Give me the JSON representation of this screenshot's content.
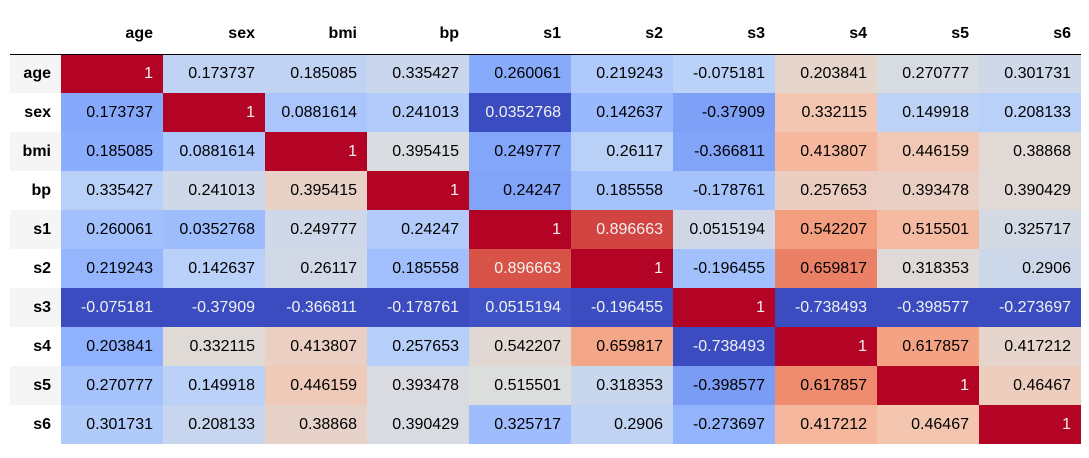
{
  "chart_data": {
    "type": "heatmap",
    "colormap": "coolwarm",
    "columns": [
      "age",
      "sex",
      "bmi",
      "bp",
      "s1",
      "s2",
      "s3",
      "s4",
      "s5",
      "s6"
    ],
    "rows": [
      "age",
      "sex",
      "bmi",
      "bp",
      "s1",
      "s2",
      "s3",
      "s4",
      "s5",
      "s6"
    ],
    "values": [
      [
        "1",
        "0.173737",
        "0.185085",
        "0.335427",
        "0.260061",
        "0.219243",
        "-0.075181",
        "0.203841",
        "0.270777",
        "0.301731"
      ],
      [
        "0.173737",
        "1",
        "0.0881614",
        "0.241013",
        "0.0352768",
        "0.142637",
        "-0.37909",
        "0.332115",
        "0.149918",
        "0.208133"
      ],
      [
        "0.185085",
        "0.0881614",
        "1",
        "0.395415",
        "0.249777",
        "0.26117",
        "-0.366811",
        "0.413807",
        "0.446159",
        "0.38868"
      ],
      [
        "0.335427",
        "0.241013",
        "0.395415",
        "1",
        "0.24247",
        "0.185558",
        "-0.178761",
        "0.257653",
        "0.393478",
        "0.390429"
      ],
      [
        "0.260061",
        "0.0352768",
        "0.249777",
        "0.24247",
        "1",
        "0.896663",
        "0.0515194",
        "0.542207",
        "0.515501",
        "0.325717"
      ],
      [
        "0.219243",
        "0.142637",
        "0.26117",
        "0.185558",
        "0.896663",
        "1",
        "-0.196455",
        "0.659817",
        "0.318353",
        "0.2906"
      ],
      [
        "-0.075181",
        "-0.37909",
        "-0.366811",
        "-0.178761",
        "0.0515194",
        "-0.196455",
        "1",
        "-0.738493",
        "-0.398577",
        "-0.273697"
      ],
      [
        "0.203841",
        "0.332115",
        "0.413807",
        "0.257653",
        "0.542207",
        "0.659817",
        "-0.738493",
        "1",
        "0.617857",
        "0.417212"
      ],
      [
        "0.270777",
        "0.149918",
        "0.446159",
        "0.393478",
        "0.515501",
        "0.318353",
        "-0.398577",
        "0.617857",
        "1",
        "0.46467"
      ],
      [
        "0.301731",
        "0.208133",
        "0.38868",
        "0.390429",
        "0.325717",
        "0.2906",
        "-0.273697",
        "0.417212",
        "0.46467",
        "1"
      ]
    ]
  }
}
